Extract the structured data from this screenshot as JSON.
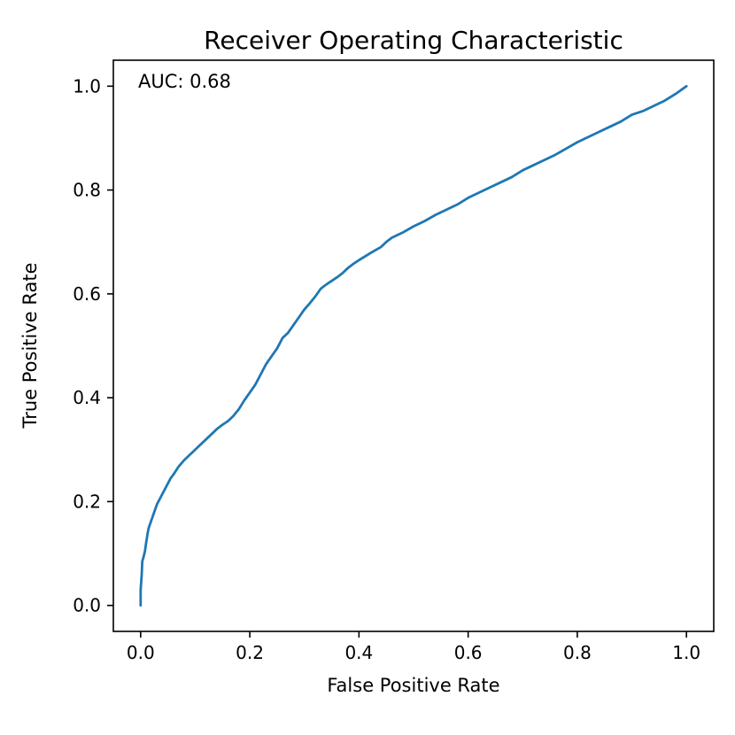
{
  "chart_data": {
    "type": "line",
    "title": "Receiver Operating Characteristic",
    "xlabel": "False Positive Rate",
    "ylabel": "True Positive Rate",
    "annotation": "AUC: 0.68",
    "auc": 0.68,
    "grid": false,
    "legend": "none",
    "line_color": "#1f77b4",
    "xlim": [
      -0.05,
      1.05
    ],
    "ylim": [
      -0.05,
      1.05
    ],
    "x_ticks": [
      0.0,
      0.2,
      0.4,
      0.6,
      0.8,
      1.0
    ],
    "x_tick_labels": [
      "0.0",
      "0.2",
      "0.4",
      "0.6",
      "0.8",
      "1.0"
    ],
    "y_ticks": [
      0.0,
      0.2,
      0.4,
      0.6,
      0.8,
      1.0
    ],
    "y_tick_labels": [
      "0.0",
      "0.2",
      "0.4",
      "0.6",
      "0.8",
      "1.0"
    ],
    "series": [
      {
        "name": "ROC curve",
        "points": [
          [
            0.0,
            0.0
          ],
          [
            0.0,
            0.03
          ],
          [
            0.002,
            0.06
          ],
          [
            0.003,
            0.085
          ],
          [
            0.005,
            0.092
          ],
          [
            0.008,
            0.105
          ],
          [
            0.01,
            0.12
          ],
          [
            0.013,
            0.14
          ],
          [
            0.015,
            0.15
          ],
          [
            0.02,
            0.165
          ],
          [
            0.025,
            0.18
          ],
          [
            0.03,
            0.195
          ],
          [
            0.035,
            0.205
          ],
          [
            0.04,
            0.215
          ],
          [
            0.045,
            0.225
          ],
          [
            0.05,
            0.235
          ],
          [
            0.055,
            0.245
          ],
          [
            0.06,
            0.252
          ],
          [
            0.065,
            0.26
          ],
          [
            0.07,
            0.268
          ],
          [
            0.08,
            0.28
          ],
          [
            0.09,
            0.29
          ],
          [
            0.1,
            0.3
          ],
          [
            0.11,
            0.31
          ],
          [
            0.12,
            0.32
          ],
          [
            0.13,
            0.33
          ],
          [
            0.14,
            0.34
          ],
          [
            0.15,
            0.348
          ],
          [
            0.16,
            0.355
          ],
          [
            0.17,
            0.365
          ],
          [
            0.18,
            0.378
          ],
          [
            0.19,
            0.395
          ],
          [
            0.2,
            0.41
          ],
          [
            0.21,
            0.425
          ],
          [
            0.22,
            0.445
          ],
          [
            0.23,
            0.465
          ],
          [
            0.24,
            0.48
          ],
          [
            0.25,
            0.495
          ],
          [
            0.255,
            0.505
          ],
          [
            0.26,
            0.515
          ],
          [
            0.27,
            0.525
          ],
          [
            0.28,
            0.54
          ],
          [
            0.29,
            0.555
          ],
          [
            0.3,
            0.57
          ],
          [
            0.31,
            0.582
          ],
          [
            0.32,
            0.595
          ],
          [
            0.33,
            0.61
          ],
          [
            0.34,
            0.618
          ],
          [
            0.35,
            0.625
          ],
          [
            0.36,
            0.632
          ],
          [
            0.37,
            0.64
          ],
          [
            0.38,
            0.65
          ],
          [
            0.39,
            0.658
          ],
          [
            0.4,
            0.665
          ],
          [
            0.42,
            0.678
          ],
          [
            0.44,
            0.69
          ],
          [
            0.45,
            0.7
          ],
          [
            0.46,
            0.708
          ],
          [
            0.48,
            0.718
          ],
          [
            0.5,
            0.73
          ],
          [
            0.52,
            0.74
          ],
          [
            0.54,
            0.752
          ],
          [
            0.56,
            0.762
          ],
          [
            0.58,
            0.772
          ],
          [
            0.6,
            0.785
          ],
          [
            0.62,
            0.795
          ],
          [
            0.64,
            0.805
          ],
          [
            0.66,
            0.815
          ],
          [
            0.68,
            0.825
          ],
          [
            0.7,
            0.838
          ],
          [
            0.72,
            0.848
          ],
          [
            0.74,
            0.858
          ],
          [
            0.76,
            0.868
          ],
          [
            0.78,
            0.88
          ],
          [
            0.8,
            0.892
          ],
          [
            0.82,
            0.902
          ],
          [
            0.84,
            0.912
          ],
          [
            0.86,
            0.922
          ],
          [
            0.88,
            0.932
          ],
          [
            0.9,
            0.945
          ],
          [
            0.92,
            0.952
          ],
          [
            0.94,
            0.962
          ],
          [
            0.96,
            0.972
          ],
          [
            0.98,
            0.985
          ],
          [
            1.0,
            1.0
          ]
        ]
      }
    ]
  }
}
